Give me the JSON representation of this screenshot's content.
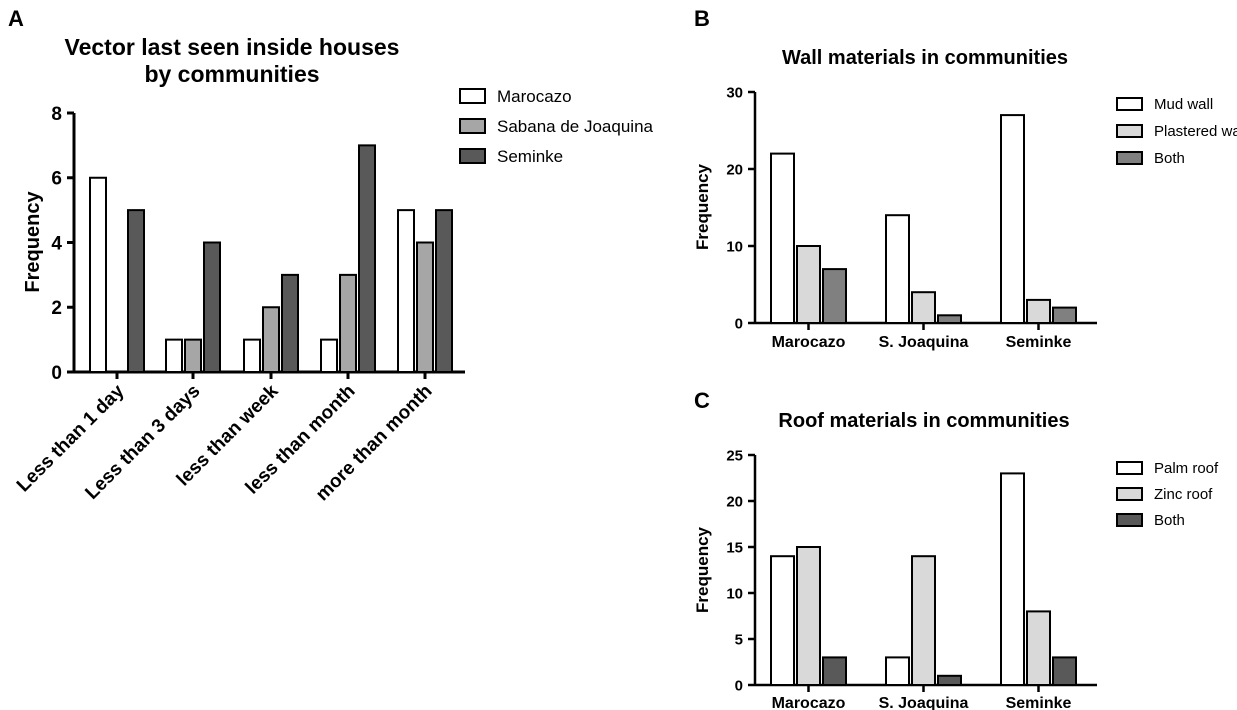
{
  "panels": [
    {
      "letter": "A",
      "title_lines": [
        "Vector last seen inside houses",
        "by communities"
      ],
      "ylabel": "Frequency",
      "xlabel": "",
      "ylim": [
        0,
        8
      ],
      "yticks": [
        0,
        2,
        4,
        6,
        8
      ],
      "categories": [
        "Less than 1 day",
        "Less than 3 days",
        "less than week",
        "less than month",
        "more than month"
      ],
      "rotate_labels": true,
      "series": [
        {
          "name": "Marocazo",
          "color": "#ffffff",
          "values": [
            6,
            1,
            1,
            1,
            5
          ]
        },
        {
          "name": "Sabana de Joaquina",
          "color": "#a6a6a6",
          "values": [
            0,
            1,
            2,
            3,
            4
          ]
        },
        {
          "name": "Seminke",
          "color": "#595959",
          "values": [
            5,
            4,
            3,
            7,
            5
          ]
        }
      ]
    },
    {
      "letter": "B",
      "title_lines": [
        "Wall materials in communities"
      ],
      "ylabel": "Frequency",
      "xlabel": "",
      "ylim": [
        0,
        30
      ],
      "yticks": [
        0,
        10,
        20,
        30
      ],
      "categories": [
        "Marocazo",
        "S. Joaquina",
        "Seminke"
      ],
      "rotate_labels": false,
      "series": [
        {
          "name": "Mud wall",
          "color": "#ffffff",
          "values": [
            22,
            14,
            27
          ]
        },
        {
          "name": "Plastered wall",
          "color": "#d9d9d9",
          "values": [
            10,
            4,
            3
          ]
        },
        {
          "name": "Both",
          "color": "#808080",
          "values": [
            7,
            1,
            2
          ]
        }
      ]
    },
    {
      "letter": "C",
      "title_lines": [
        "Roof materials in communities"
      ],
      "ylabel": "Frequency",
      "xlabel": "",
      "ylim": [
        0,
        25
      ],
      "yticks": [
        0,
        5,
        10,
        15,
        20,
        25
      ],
      "categories": [
        "Marocazo",
        "S. Joaquina",
        "Seminke"
      ],
      "rotate_labels": false,
      "series": [
        {
          "name": "Palm roof",
          "color": "#ffffff",
          "values": [
            14,
            3,
            23
          ]
        },
        {
          "name": "Zinc roof",
          "color": "#d9d9d9",
          "values": [
            15,
            14,
            8
          ]
        },
        {
          "name": "Both",
          "color": "#595959",
          "values": [
            3,
            1,
            3
          ]
        }
      ]
    }
  ],
  "chart_data": [
    {
      "type": "bar",
      "title": "Vector last seen inside houses by communities",
      "xlabel": "",
      "ylabel": "Frequency",
      "ylim": [
        0,
        8
      ],
      "categories": [
        "Less than 1 day",
        "Less than 3 days",
        "less than week",
        "less than month",
        "more than month"
      ],
      "series": [
        {
          "name": "Marocazo",
          "values": [
            6,
            1,
            1,
            1,
            5
          ]
        },
        {
          "name": "Sabana de Joaquina",
          "values": [
            0,
            1,
            2,
            3,
            4
          ]
        },
        {
          "name": "Seminke",
          "values": [
            5,
            4,
            3,
            7,
            5
          ]
        }
      ],
      "legend": "top-right",
      "grid": false
    },
    {
      "type": "bar",
      "title": "Wall materials in communities",
      "xlabel": "",
      "ylabel": "Frequency",
      "ylim": [
        0,
        30
      ],
      "categories": [
        "Marocazo",
        "S. Joaquina",
        "Seminke"
      ],
      "series": [
        {
          "name": "Mud wall",
          "values": [
            22,
            14,
            27
          ]
        },
        {
          "name": "Plastered wall",
          "values": [
            10,
            4,
            3
          ]
        },
        {
          "name": "Both",
          "values": [
            7,
            1,
            2
          ]
        }
      ],
      "legend": "top-right",
      "grid": false
    },
    {
      "type": "bar",
      "title": "Roof materials in communities",
      "xlabel": "",
      "ylabel": "Frequency",
      "ylim": [
        0,
        25
      ],
      "categories": [
        "Marocazo",
        "S. Joaquina",
        "Seminke"
      ],
      "series": [
        {
          "name": "Palm roof",
          "values": [
            14,
            3,
            23
          ]
        },
        {
          "name": "Zinc roof",
          "values": [
            15,
            14,
            8
          ]
        },
        {
          "name": "Both",
          "values": [
            3,
            1,
            3
          ]
        }
      ],
      "legend": "top-right",
      "grid": false
    }
  ]
}
